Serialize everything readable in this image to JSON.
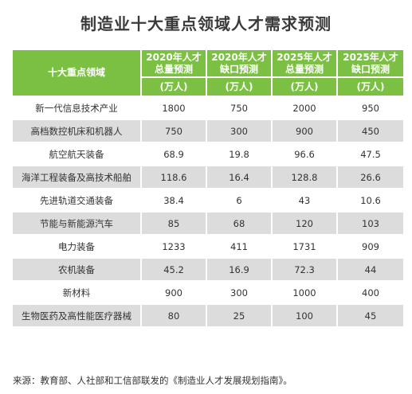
{
  "title": "制造业十大重点领域人才需求预测",
  "source": "来源：教育部、人社部和工信部联发的《制造业人才发展规划指南》。",
  "colors": {
    "header_green": "#7bc043",
    "row_gray": "#dcdcdc"
  },
  "chart_data": {
    "type": "table",
    "title": "制造业十大重点领域人才需求预测",
    "header": {
      "field_label": "十大重点领域",
      "columns": [
        {
          "line1": "2020年人才",
          "line2": "总量预测"
        },
        {
          "line1": "2020年人才",
          "line2": "缺口预测"
        },
        {
          "line1": "2025年人才",
          "line2": "总量预测"
        },
        {
          "line1": "2025年人才",
          "line2": "缺口预测"
        }
      ],
      "unit": "(万人)"
    },
    "rows": [
      {
        "field": "新一代信息技术产业",
        "values": [
          "1800",
          "750",
          "2000",
          "950"
        ]
      },
      {
        "field": "高档数控机床和机器人",
        "values": [
          "750",
          "300",
          "900",
          "450"
        ]
      },
      {
        "field": "航空航天装备",
        "values": [
          "68.9",
          "19.8",
          "96.6",
          "47.5"
        ]
      },
      {
        "field": "海洋工程装备及高技术船舶",
        "values": [
          "118.6",
          "16.4",
          "128.8",
          "26.6"
        ]
      },
      {
        "field": "先进轨道交通装备",
        "values": [
          "38.4",
          "6",
          "43",
          "10.6"
        ]
      },
      {
        "field": "节能与新能源汽车",
        "values": [
          "85",
          "68",
          "120",
          "103"
        ]
      },
      {
        "field": "电力装备",
        "values": [
          "1233",
          "411",
          "1731",
          "909"
        ]
      },
      {
        "field": "农机装备",
        "values": [
          "45.2",
          "16.9",
          "72.3",
          "44"
        ]
      },
      {
        "field": "新材料",
        "values": [
          "900",
          "300",
          "1000",
          "400"
        ]
      },
      {
        "field": "生物医药及高性能医疗器械",
        "values": [
          "80",
          "25",
          "100",
          "45"
        ]
      }
    ]
  }
}
